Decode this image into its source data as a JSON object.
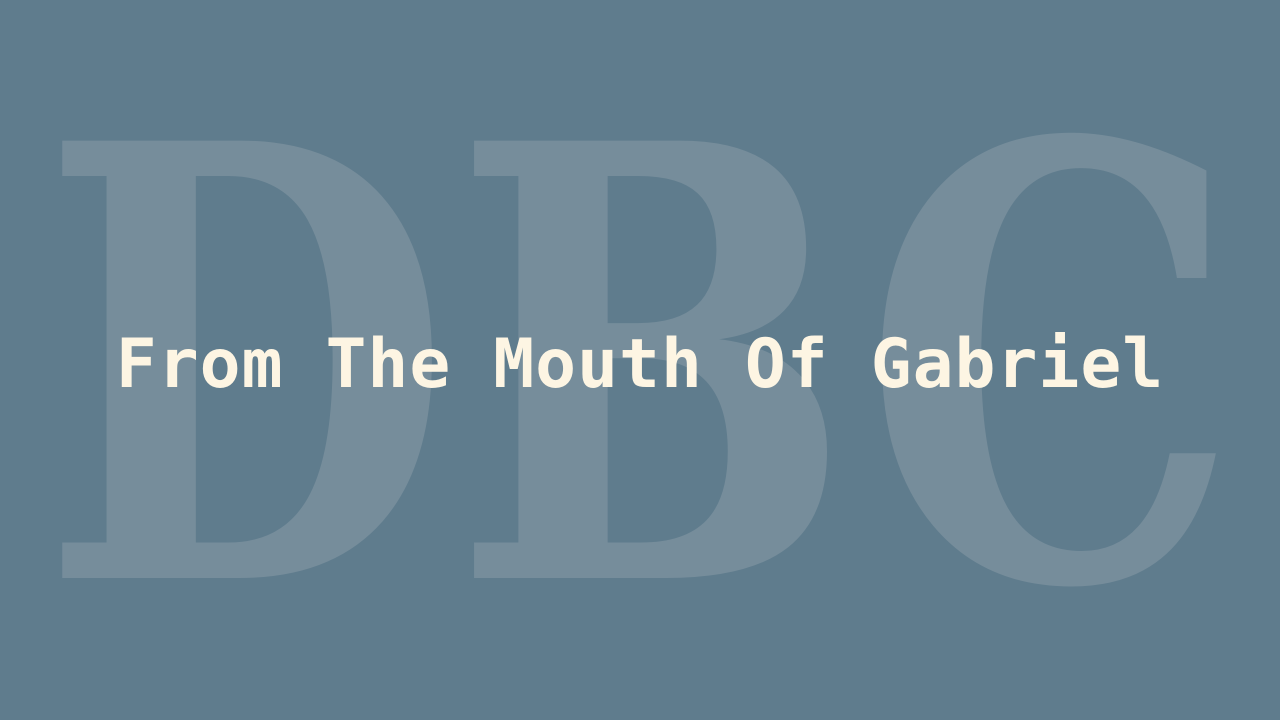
{
  "banner": {
    "watermark_text": "DBC",
    "title": "From The Mouth Of Gabriel"
  },
  "colors": {
    "background": "#5f7c8d",
    "watermark": "#768d9b",
    "title": "#fdf5e3"
  }
}
